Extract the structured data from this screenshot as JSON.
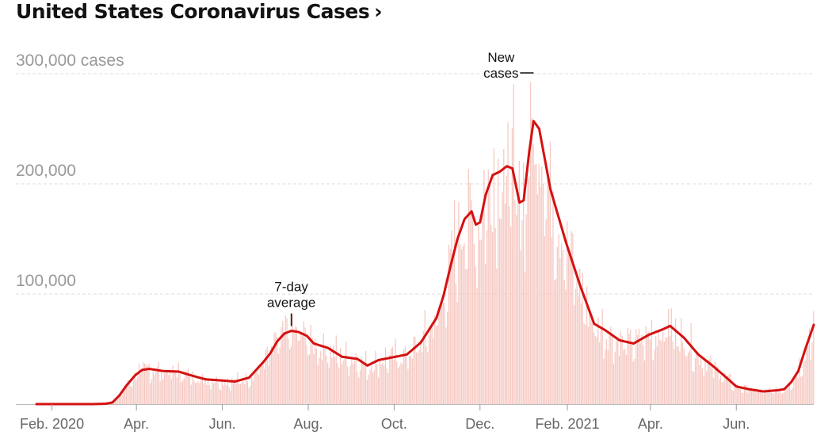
{
  "header": {
    "title": "United States Coronavirus Cases",
    "chevron": "›"
  },
  "chart_data": {
    "type": "bar",
    "title": "United States Coronavirus Cases",
    "xlabel": "",
    "ylabel": "",
    "ylim": [
      0,
      300000
    ],
    "xlim": [
      "2020-01-21",
      "2021-07-26"
    ],
    "y_ticks": [
      {
        "value": 100000,
        "label": "100,000"
      },
      {
        "value": 200000,
        "label": "200,000"
      },
      {
        "value": 300000,
        "label": "300,000 cases"
      }
    ],
    "x_ticks": [
      {
        "date": "2020-02-01",
        "label": "Feb. 2020"
      },
      {
        "date": "2020-04-01",
        "label": "Apr."
      },
      {
        "date": "2020-06-01",
        "label": "Jun."
      },
      {
        "date": "2020-08-01",
        "label": "Aug."
      },
      {
        "date": "2020-10-01",
        "label": "Oct."
      },
      {
        "date": "2020-12-01",
        "label": "Dec."
      },
      {
        "date": "2021-02-01",
        "label": "Feb. 2021"
      },
      {
        "date": "2021-04-01",
        "label": "Apr."
      },
      {
        "date": "2021-06-01",
        "label": "Jun."
      }
    ],
    "grid": true,
    "series": [
      {
        "name": "New cases",
        "type": "bar",
        "color": "#f6c9c3",
        "note": "daily values approximated from 7-day average"
      },
      {
        "name": "7-day average",
        "type": "line",
        "color": "#d41111",
        "points": [
          [
            "2020-01-21",
            0
          ],
          [
            "2020-03-01",
            0
          ],
          [
            "2020-03-10",
            300
          ],
          [
            "2020-03-15",
            1500
          ],
          [
            "2020-03-20",
            8000
          ],
          [
            "2020-03-25",
            17000
          ],
          [
            "2020-03-31",
            26000
          ],
          [
            "2020-04-05",
            31000
          ],
          [
            "2020-04-10",
            32000
          ],
          [
            "2020-04-20",
            30000
          ],
          [
            "2020-05-01",
            29500
          ],
          [
            "2020-05-10",
            26000
          ],
          [
            "2020-05-20",
            22500
          ],
          [
            "2020-05-31",
            21500
          ],
          [
            "2020-06-10",
            20500
          ],
          [
            "2020-06-20",
            24000
          ],
          [
            "2020-06-30",
            38000
          ],
          [
            "2020-07-05",
            46000
          ],
          [
            "2020-07-10",
            57000
          ],
          [
            "2020-07-15",
            64000
          ],
          [
            "2020-07-20",
            66500
          ],
          [
            "2020-07-25",
            65500
          ],
          [
            "2020-07-31",
            62000
          ],
          [
            "2020-08-05",
            55000
          ],
          [
            "2020-08-15",
            51000
          ],
          [
            "2020-08-25",
            43000
          ],
          [
            "2020-09-05",
            41000
          ],
          [
            "2020-09-12",
            35000
          ],
          [
            "2020-09-20",
            40000
          ],
          [
            "2020-09-30",
            42500
          ],
          [
            "2020-10-10",
            45000
          ],
          [
            "2020-10-20",
            56000
          ],
          [
            "2020-10-31",
            78000
          ],
          [
            "2020-11-05",
            98000
          ],
          [
            "2020-11-10",
            125000
          ],
          [
            "2020-11-15",
            150000
          ],
          [
            "2020-11-20",
            168000
          ],
          [
            "2020-11-25",
            175000
          ],
          [
            "2020-11-28",
            163000
          ],
          [
            "2020-12-01",
            165000
          ],
          [
            "2020-12-05",
            190000
          ],
          [
            "2020-12-10",
            208000
          ],
          [
            "2020-12-15",
            211000
          ],
          [
            "2020-12-20",
            216000
          ],
          [
            "2020-12-24",
            214000
          ],
          [
            "2020-12-29",
            183000
          ],
          [
            "2021-01-01",
            185000
          ],
          [
            "2021-01-05",
            230000
          ],
          [
            "2021-01-08",
            257000
          ],
          [
            "2021-01-12",
            250000
          ],
          [
            "2021-01-20",
            195000
          ],
          [
            "2021-01-31",
            147000
          ],
          [
            "2021-02-10",
            108000
          ],
          [
            "2021-02-20",
            73000
          ],
          [
            "2021-02-28",
            67000
          ],
          [
            "2021-03-10",
            58000
          ],
          [
            "2021-03-20",
            55000
          ],
          [
            "2021-03-31",
            63000
          ],
          [
            "2021-04-10",
            68000
          ],
          [
            "2021-04-15",
            71000
          ],
          [
            "2021-04-25",
            60000
          ],
          [
            "2021-05-05",
            45000
          ],
          [
            "2021-05-15",
            35000
          ],
          [
            "2021-05-25",
            24000
          ],
          [
            "2021-06-01",
            16000
          ],
          [
            "2021-06-10",
            13500
          ],
          [
            "2021-06-20",
            11500
          ],
          [
            "2021-06-30",
            12500
          ],
          [
            "2021-07-05",
            13500
          ],
          [
            "2021-07-10",
            20000
          ],
          [
            "2021-07-15",
            30000
          ],
          [
            "2021-07-20",
            50000
          ],
          [
            "2021-07-26",
            72000
          ]
        ]
      }
    ],
    "annotations": [
      {
        "lines": [
          "7-day",
          "average"
        ],
        "date": "2020-07-20",
        "value": 66500
      },
      {
        "lines": [
          "New",
          "cases"
        ],
        "date": "2021-01-08",
        "value": 300000
      }
    ]
  }
}
